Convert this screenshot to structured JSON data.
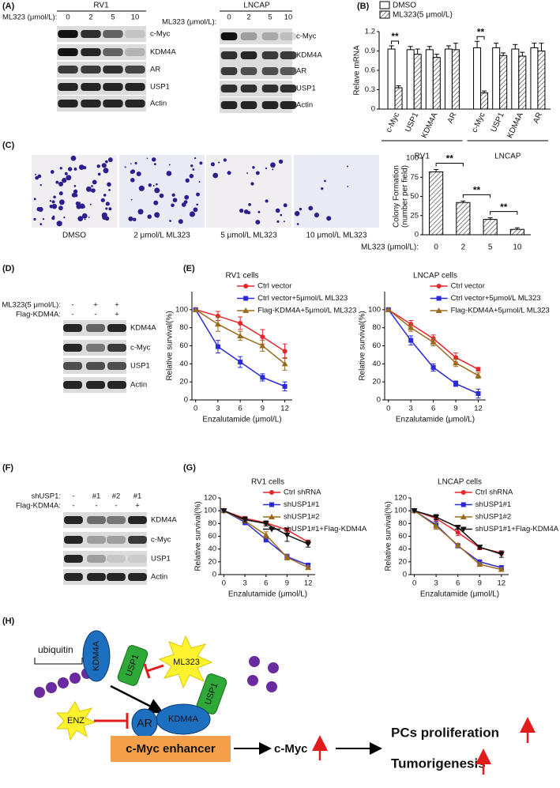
{
  "panels": [
    "(A)",
    "(B)",
    "(C)",
    "(D)",
    "(E)",
    "(F)",
    "(G)",
    "(H)"
  ],
  "blots": [
    {
      "cell_line": "RV1",
      "conditions": [
        {
          "label": "ML323 (μmol/L):",
          "lanes": [
            "0",
            "2",
            "5",
            "10"
          ]
        }
      ],
      "proteins": [
        "c-Myc",
        "KDM4A",
        "AR",
        "USP1",
        "Actin"
      ]
    },
    {
      "cell_line": "LNCAP",
      "conditions": [
        {
          "label": "ML323 (μmol/L):",
          "lanes": [
            "0",
            "2",
            "5",
            "10"
          ]
        }
      ],
      "proteins": [
        "c-Myc",
        "KDM4A",
        "AR",
        "USP1",
        "Actin"
      ]
    },
    {
      "conditions": [
        {
          "label": "ML323(5 μmol/L):",
          "lanes": [
            "-",
            "+",
            "+"
          ]
        },
        {
          "label": "Flag-KDM4A:",
          "lanes": [
            "-",
            "-",
            "+"
          ]
        }
      ],
      "proteins": [
        "KDM4A",
        "c-Myc",
        "USP1",
        "Actin"
      ]
    },
    {
      "conditions": [
        {
          "label": "shUSP1:",
          "lanes": [
            "-",
            "#1",
            "#2",
            "#1"
          ]
        },
        {
          "label": "Flag-KDM4A:",
          "lanes": [
            "-",
            "-",
            "-",
            "+"
          ]
        }
      ],
      "proteins": [
        "KDM4A",
        "c-Myc",
        "USP1",
        "Actin"
      ]
    }
  ],
  "colony_images": [
    "DMSO",
    "2 μmol/L ML323",
    "5 μmol/L ML323",
    "10 μmol/L ML323"
  ],
  "chart_data": [
    {
      "type": "bar",
      "y_label": "Relave mRNA",
      "categories": [
        "c-Myc",
        "USP1",
        "KDM4A",
        "AR",
        "c-Myc",
        "USP1",
        "KDM4A",
        "AR"
      ],
      "group_labels": [
        "RV1",
        "LNCAP"
      ],
      "series": [
        {
          "name": "DMSO",
          "color": "#ffffff",
          "hatch": false,
          "values": [
            0.93,
            0.92,
            0.92,
            0.93,
            0.95,
            0.95,
            0.93,
            0.95
          ],
          "errors": [
            0.05,
            0.05,
            0.05,
            0.05,
            0.1,
            0.07,
            0.07,
            0.07
          ]
        },
        {
          "name": "ML323(5 μmol/L)",
          "color": "#ffffff",
          "hatch": true,
          "values": [
            0.33,
            0.85,
            0.8,
            0.92,
            0.25,
            0.83,
            0.82,
            0.9
          ],
          "errors": [
            0.03,
            0.08,
            0.05,
            0.1,
            0.03,
            0.04,
            0.06,
            0.12
          ]
        }
      ],
      "annotations": [
        "**",
        "**"
      ],
      "ylim": [
        0,
        1.2
      ],
      "yticks": [
        0,
        0.3,
        0.6,
        0.9,
        1.2
      ]
    },
    {
      "type": "bar",
      "y_label": [
        "Colony Formation",
        "(number per field)"
      ],
      "x_label": "ML323 (μmol/L):",
      "categories": [
        "0",
        "2",
        "5",
        "10"
      ],
      "values": [
        82,
        42,
        20,
        7
      ],
      "errors": [
        3,
        2,
        2,
        2
      ],
      "color": "#ffffff",
      "hatch": true,
      "annotations": [
        "**",
        "**",
        "**"
      ],
      "ylim": [
        0,
        100
      ],
      "yticks": [
        0,
        25,
        50,
        75,
        100
      ]
    },
    {
      "type": "line",
      "title": "RV1 cells",
      "x_label": "Enzalutamide (μmol/L)",
      "y_label": "Relative survival(%)",
      "x": [
        0,
        3,
        6,
        9,
        12
      ],
      "xlim": [
        -0.5,
        13
      ],
      "xticks": [
        0,
        3,
        6,
        9,
        12
      ],
      "ylim": [
        0,
        120
      ],
      "yticks": [
        0,
        20,
        40,
        60,
        80,
        100
      ],
      "legend": "upper right",
      "series": [
        {
          "name": "Ctrl vector",
          "color": "#e8262a",
          "marker": "circle",
          "values": [
            100,
            93,
            85,
            70,
            54
          ],
          "errors": [
            0,
            5,
            7,
            8,
            8
          ]
        },
        {
          "name": "Ctrl vector+5μmol/L ML323",
          "color": "#2a2ad8",
          "marker": "square",
          "values": [
            100,
            59,
            42,
            25,
            15
          ],
          "errors": [
            0,
            7,
            6,
            4,
            5
          ]
        },
        {
          "name": "Flag-KDM4A+5μmol/L ML323",
          "color": "#9b6a1c",
          "marker": "triangle",
          "values": [
            100,
            84,
            71,
            60,
            40
          ],
          "errors": [
            0,
            8,
            5,
            6,
            7
          ]
        }
      ]
    },
    {
      "type": "line",
      "title": "LNCAP cells",
      "x_label": "Enzalutamide (μmol/L)",
      "y_label": "Relative survival(%)",
      "x": [
        0,
        3,
        6,
        9,
        12
      ],
      "xlim": [
        -0.5,
        13
      ],
      "xticks": [
        0,
        3,
        6,
        9,
        12
      ],
      "ylim": [
        0,
        120
      ],
      "yticks": [
        0,
        20,
        40,
        60,
        80,
        100
      ],
      "legend": "upper right",
      "series": [
        {
          "name": "Ctrl vector",
          "color": "#e8262a",
          "marker": "circle",
          "values": [
            100,
            84,
            68,
            47,
            34
          ],
          "errors": [
            0,
            4,
            4,
            5,
            2
          ]
        },
        {
          "name": "Ctrl vector+5μmol/L ML323",
          "color": "#2a2ad8",
          "marker": "square",
          "values": [
            100,
            66,
            36,
            18,
            7
          ],
          "errors": [
            0,
            5,
            4,
            3,
            5
          ]
        },
        {
          "name": "Flag-KDM4A+5μmol/L ML323",
          "color": "#9b6a1c",
          "marker": "triangle",
          "values": [
            100,
            80,
            64,
            41,
            27
          ],
          "errors": [
            0,
            4,
            4,
            4,
            3
          ]
        }
      ]
    },
    {
      "type": "line",
      "title": "RV1 cells",
      "x_label": "Enzalutamide (μmol/L)",
      "y_label": "Relative survival(%)",
      "x": [
        0,
        3,
        6,
        9,
        12
      ],
      "xlim": [
        -0.5,
        13
      ],
      "xticks": [
        0,
        3,
        6,
        9,
        12
      ],
      "ylim": [
        0,
        120
      ],
      "yticks": [
        0,
        20,
        40,
        60,
        80,
        100,
        120
      ],
      "legend": "upper right",
      "series": [
        {
          "name": "Ctrl shRNA",
          "color": "#e8262a",
          "marker": "circle",
          "values": [
            100,
            88,
            81,
            70,
            51
          ],
          "errors": [
            0,
            3,
            3,
            3,
            3
          ]
        },
        {
          "name": "shUSP1#1",
          "color": "#2a2ad8",
          "marker": "square",
          "values": [
            100,
            82,
            55,
            28,
            15
          ],
          "errors": [
            0,
            4,
            4,
            4,
            2
          ]
        },
        {
          "name": "shUSP1#2",
          "color": "#9b6a1c",
          "marker": "triangle",
          "values": [
            100,
            84,
            62,
            27,
            11
          ],
          "errors": [
            0,
            3,
            5,
            4,
            3
          ]
        },
        {
          "name": "shUSP1#1+Flag-KDM4A",
          "color": "#111111",
          "marker": "triangle-down",
          "values": [
            100,
            86,
            80,
            62,
            48
          ],
          "errors": [
            0,
            4,
            4,
            10,
            5
          ]
        }
      ]
    },
    {
      "type": "line",
      "title": "LNCAP cells",
      "x_label": "Enzalutamide (μmol/L)",
      "y_label": "Relative survival(%)",
      "x": [
        0,
        3,
        6,
        9,
        12
      ],
      "xlim": [
        -0.5,
        13
      ],
      "xticks": [
        0,
        3,
        6,
        9,
        12
      ],
      "ylim": [
        0,
        120
      ],
      "yticks": [
        0,
        20,
        40,
        60,
        80,
        100,
        120
      ],
      "legend": "upper right",
      "series": [
        {
          "name": "Ctrl shRNA",
          "color": "#e8262a",
          "marker": "circle",
          "values": [
            100,
            88,
            66,
            42,
            34
          ],
          "errors": [
            0,
            4,
            5,
            3,
            3
          ]
        },
        {
          "name": "shUSP1#1",
          "color": "#2a2ad8",
          "marker": "square",
          "values": [
            100,
            78,
            45,
            20,
            11
          ],
          "errors": [
            0,
            5,
            3,
            3,
            3
          ]
        },
        {
          "name": "shUSP1#2",
          "color": "#9b6a1c",
          "marker": "triangle",
          "values": [
            100,
            76,
            46,
            16,
            8
          ],
          "errors": [
            0,
            5,
            3,
            3,
            3
          ]
        },
        {
          "name": "shUSP1#1+Flag-KDM4A",
          "color": "#111111",
          "marker": "triangle-down",
          "values": [
            100,
            90,
            74,
            43,
            32
          ],
          "errors": [
            0,
            4,
            3,
            3,
            5
          ]
        }
      ]
    }
  ],
  "diagram": {
    "ubiquitin": "ubiquitin",
    "kdm4a_free": "KDM4A",
    "usp1_free": "USP1",
    "inhibitor": "ML323",
    "kdm4a_complex": "KDM4A",
    "usp1_complex": "USP1",
    "ar": "AR",
    "drug": "ENZ",
    "enhancer": "c-Myc enhancer",
    "target": "c-Myc",
    "outcomes": [
      "PCs proliferation",
      "Tumorigenesis"
    ]
  }
}
